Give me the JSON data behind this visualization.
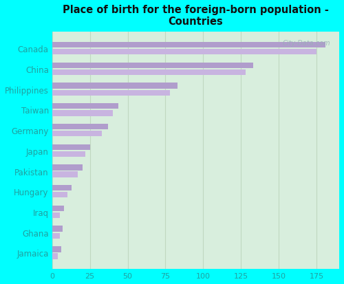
{
  "title": "Place of birth for the foreign-born population -\nCountries",
  "countries": [
    "Canada",
    "China",
    "Philippines",
    "Taiwan",
    "Germany",
    "Japan",
    "Pakistan",
    "Hungary",
    "Iraq",
    "Ghana",
    "Jamaica"
  ],
  "bar1_values": [
    181,
    133,
    83,
    44,
    37,
    25,
    20,
    13,
    8,
    7,
    6
  ],
  "bar2_values": [
    175,
    128,
    78,
    40,
    33,
    22,
    17,
    10,
    5,
    5,
    4
  ],
  "bar_color1": "#b09dcc",
  "bar_color2": "#c8b4e0",
  "background_color": "#00ffff",
  "plot_bg_start": "#d8eedd",
  "plot_bg_end": "#e8f8e8",
  "grid_color": "#c0d8c0",
  "tick_color": "#20a0a0",
  "title_color": "#101010",
  "xlim": [
    0,
    190
  ],
  "xticks": [
    0,
    25,
    50,
    75,
    100,
    125,
    150,
    175
  ],
  "bar_height": 0.28,
  "bar_gap": 0.06,
  "watermark": "City-Data.com"
}
